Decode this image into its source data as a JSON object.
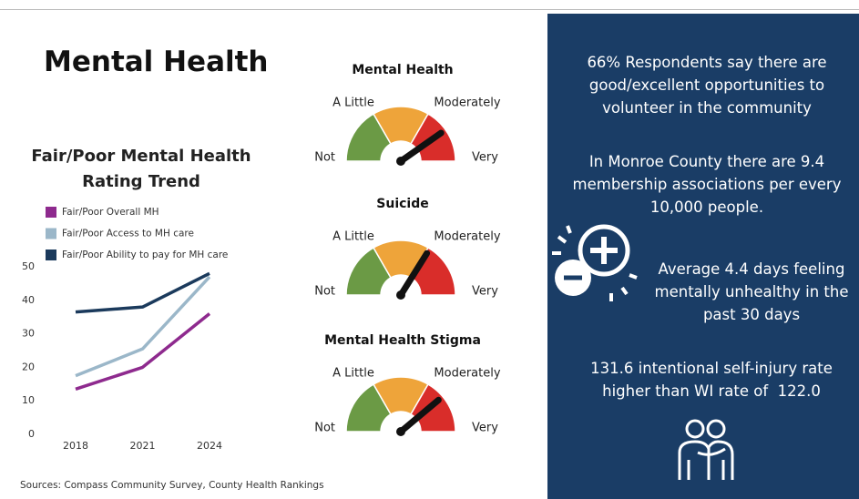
{
  "title": "Mental Health",
  "chart_data": {
    "type": "line",
    "title": "Fair/Poor Mental Health Rating Trend",
    "categories": [
      "2018",
      "2021",
      "2024"
    ],
    "series": [
      {
        "name": "Fair/Poor Overall MH",
        "color": "#8e2a8e",
        "values": [
          13.5,
          20,
          36
        ]
      },
      {
        "name": "Fair/Poor Access to MH care",
        "color": "#9bb7c9",
        "values": [
          17.5,
          25.5,
          47
        ]
      },
      {
        "name": "Fair/Poor Ability to pay for MH care",
        "color": "#1b3a5c",
        "values": [
          36.5,
          38,
          48
        ]
      }
    ],
    "ylim": [
      0,
      50
    ],
    "yticks": [
      0,
      10,
      20,
      30,
      40,
      50
    ],
    "grid": false
  },
  "gauges": [
    {
      "title": "Mental Health",
      "labels": [
        "Not",
        "A Little",
        "Moderately",
        "Very"
      ]
    },
    {
      "title": "Suicide",
      "labels": [
        "Not",
        "A Little",
        "Moderately",
        "Very"
      ]
    },
    {
      "title": "Mental Health Stigma",
      "labels": [
        "Not",
        "A Little",
        "Moderately",
        "Very"
      ]
    }
  ],
  "facts": [
    "66% Respondents say there are good/excellent opportunities to volunteer in the community",
    "In Monroe County there are 9.4 membership associations per every 10,000 people.",
    "Average 4.4 days feeling mentally unhealthy in the past 30 days",
    "131.6 intentional self-injury rate higher than WI rate of  122.0"
  ],
  "sources": "Sources: Compass Community Survey, County Health Rankings"
}
